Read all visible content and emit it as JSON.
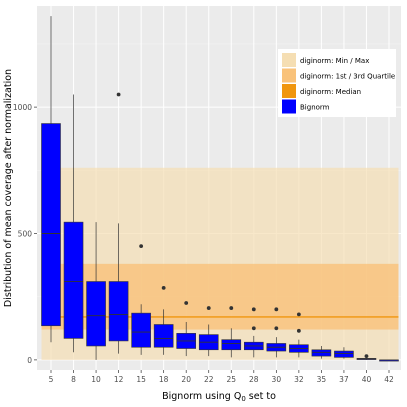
{
  "chart_data": {
    "type": "boxplot",
    "xlabel": "Bignorm using Q",
    "xlabel_sub": "0",
    "xlabel_suffix": " set to",
    "ylabel": "Distribution of mean coverage after normalization",
    "ylim": [
      -40,
      1400
    ],
    "yticks": [
      0,
      500,
      1000
    ],
    "grid": true,
    "legend_position": "top-right",
    "categories": [
      "5",
      "8",
      "10",
      "12",
      "15",
      "18",
      "20",
      "22",
      "25",
      "28",
      "30",
      "32",
      "35",
      "37",
      "40",
      "42"
    ],
    "series": [
      {
        "name": "Bignorm",
        "color": "#0000ff",
        "boxes": [
          {
            "min": 70,
            "q1": 135,
            "median": 500,
            "q3": 935,
            "max": 1360,
            "outliers": []
          },
          {
            "min": 30,
            "q1": 85,
            "median": 310,
            "q3": 545,
            "max": 1050,
            "outliers": []
          },
          {
            "min": 0,
            "q1": 55,
            "median": 175,
            "q3": 310,
            "max": 545,
            "outliers": []
          },
          {
            "min": 25,
            "q1": 75,
            "median": 180,
            "q3": 310,
            "max": 540,
            "outliers": [
              1050
            ]
          },
          {
            "min": 20,
            "q1": 50,
            "median": 110,
            "q3": 185,
            "max": 220,
            "outliers": [
              450
            ]
          },
          {
            "min": 20,
            "q1": 50,
            "median": 85,
            "q3": 140,
            "max": 200,
            "outliers": [
              285
            ]
          },
          {
            "min": 15,
            "q1": 45,
            "median": 75,
            "q3": 105,
            "max": 150,
            "outliers": [
              225
            ]
          },
          {
            "min": 15,
            "q1": 40,
            "median": 70,
            "q3": 100,
            "max": 140,
            "outliers": [
              205
            ]
          },
          {
            "min": 10,
            "q1": 40,
            "median": 65,
            "q3": 80,
            "max": 125,
            "outliers": [
              205
            ]
          },
          {
            "min": 10,
            "q1": 40,
            "median": 55,
            "q3": 70,
            "max": 95,
            "outliers": [
              200,
              125
            ]
          },
          {
            "min": 10,
            "q1": 35,
            "median": 50,
            "q3": 65,
            "max": 90,
            "outliers": [
              200,
              125
            ]
          },
          {
            "min": 10,
            "q1": 30,
            "median": 45,
            "q3": 60,
            "max": 80,
            "outliers": [
              180,
              115
            ]
          },
          {
            "min": 5,
            "q1": 15,
            "median": 30,
            "q3": 40,
            "max": 55,
            "outliers": []
          },
          {
            "min": 5,
            "q1": 10,
            "median": 25,
            "q3": 35,
            "max": 50,
            "outliers": []
          },
          {
            "min": 0,
            "q1": 2,
            "median": 4,
            "q3": 6,
            "max": 10,
            "outliers": [
              15
            ]
          },
          {
            "min": 0,
            "q1": 0,
            "median": 0,
            "q3": 0,
            "max": 0,
            "outliers": []
          }
        ]
      }
    ],
    "diginorm": {
      "minmax": [
        0,
        760
      ],
      "quartiles": [
        120,
        380
      ],
      "median": 170,
      "color_minmax": "#f5deb3",
      "color_quartiles": "#f9c27a",
      "color_median": "#f0960f"
    },
    "legend": [
      {
        "label": "diginorm: Min / Max",
        "color": "#f5deb3"
      },
      {
        "label": "diginorm: 1st / 3rd Quartile",
        "color": "#f9c27a"
      },
      {
        "label": "diginorm: Median",
        "color": "#f0960f"
      },
      {
        "label": "Bignorm",
        "color": "#0000ff"
      }
    ],
    "colors": {
      "panel": "#ebebeb",
      "grid_major": "#ffffff",
      "grid_minor": "#f4f4f4",
      "axis_text": "#4d4d4d"
    }
  }
}
